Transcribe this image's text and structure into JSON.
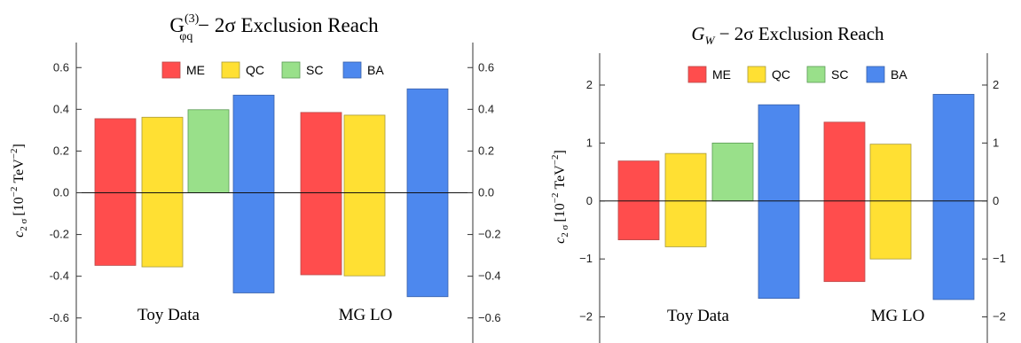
{
  "colors": {
    "ME": "#ff4d4d",
    "QC": "#ffe033",
    "SC": "#99e08a",
    "BA": "#4d88ee"
  },
  "chart_data": [
    {
      "type": "bar",
      "title": "G_{φq}^{(3)} − 2σ Exclusion Reach",
      "title_parts": {
        "main": "G",
        "sup": "(3)",
        "sub": "φq",
        "rest": " − 2σ Exclusion Reach"
      },
      "ylabel": "c_{2σ} [10^{−2} TeV^{−2}]",
      "ylabel_parts": {
        "c": "c",
        "sub": "2 σ",
        "unit": "[10",
        "exp1": "−2",
        "unit2": " TeV",
        "exp2": "−2",
        "close": "]"
      },
      "ylim": [
        -0.72,
        0.72
      ],
      "yticks": [
        -0.6,
        -0.4,
        -0.2,
        0.0,
        0.2,
        0.4,
        0.6
      ],
      "ytick_labels_left": [
        "-0.6",
        "-0.4",
        "-0.2",
        "0.0",
        "0.2",
        "0.4",
        "0.6"
      ],
      "ytick_labels_right": [
        "−0.6",
        "−0.4",
        "−0.2",
        "0.0",
        "0.2",
        "0.4",
        "0.6"
      ],
      "legend": [
        "ME",
        "QC",
        "SC",
        "BA"
      ],
      "legend_position": "top",
      "groups": [
        {
          "label": "Toy Data",
          "bars": [
            {
              "method": "ME",
              "upper": 0.355,
              "lower": -0.348
            },
            {
              "method": "QC",
              "upper": 0.362,
              "lower": -0.355
            },
            {
              "method": "SC",
              "upper": 0.398,
              "lower": 0.0
            },
            {
              "method": "BA",
              "upper": 0.468,
              "lower": -0.48
            }
          ]
        },
        {
          "label": "MG LO",
          "bars": [
            {
              "method": "ME",
              "upper": 0.385,
              "lower": -0.393
            },
            {
              "method": "QC",
              "upper": 0.372,
              "lower": -0.398
            },
            {
              "method": "BA",
              "upper": 0.498,
              "lower": -0.498
            }
          ]
        }
      ]
    },
    {
      "type": "bar",
      "title": "G_W − 2σ Exclusion Reach",
      "title_parts": {
        "main": "G",
        "sub": "W",
        "rest": " − 2σ Exclusion Reach"
      },
      "ylabel": "c_{2σ} [10^{−2} TeV^{−2}]",
      "ylabel_parts": {
        "c": "c",
        "sub": "2 σ",
        "unit": "[10",
        "exp1": "−2",
        "unit2": " TeV",
        "exp2": "−2",
        "close": "]"
      },
      "ylim": [
        -2.45,
        2.55
      ],
      "yticks": [
        -2,
        -1,
        0,
        1,
        2
      ],
      "ytick_labels_left": [
        "−2",
        "−1",
        "0",
        "1",
        "2"
      ],
      "ytick_labels_right": [
        "−2",
        "−1",
        "0",
        "1",
        "2"
      ],
      "legend": [
        "ME",
        "QC",
        "SC",
        "BA"
      ],
      "legend_position": "top",
      "groups": [
        {
          "label": "Toy Data",
          "bars": [
            {
              "method": "ME",
              "upper": 0.69,
              "lower": -0.67
            },
            {
              "method": "QC",
              "upper": 0.82,
              "lower": -0.79
            },
            {
              "method": "SC",
              "upper": 1.0,
              "lower": 0.0
            },
            {
              "method": "BA",
              "upper": 1.66,
              "lower": -1.68
            }
          ]
        },
        {
          "label": "MG LO",
          "bars": [
            {
              "method": "ME",
              "upper": 1.36,
              "lower": -1.39
            },
            {
              "method": "QC",
              "upper": 0.98,
              "lower": -1.0
            },
            {
              "method": "BA",
              "upper": 1.84,
              "lower": -1.7
            }
          ]
        }
      ]
    }
  ]
}
